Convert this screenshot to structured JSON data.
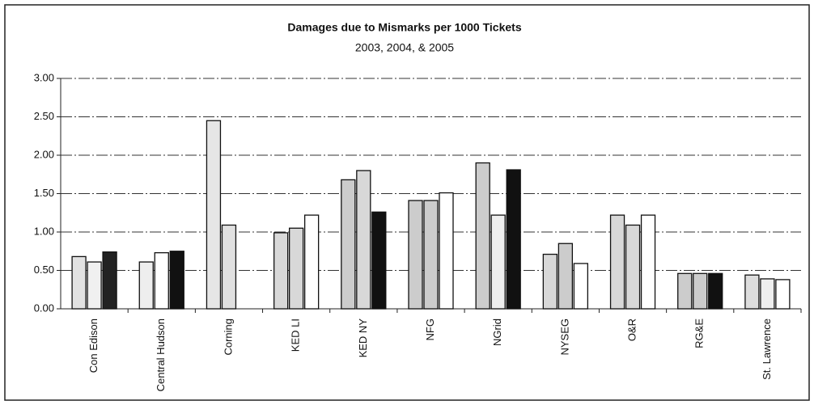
{
  "chart_data": {
    "type": "bar",
    "title": "Damages due to Mismarks per 1000 Tickets",
    "subtitle": "2003, 2004, & 2005",
    "categories": [
      "Con Edison",
      "Central Hudson",
      "Corning",
      "KED LI",
      "KED NY",
      "NFG",
      "NGrid",
      "NYSEG",
      "O&R",
      "RG&E",
      "St. Lawrence"
    ],
    "series": [
      {
        "values": [
          0.68,
          0.61,
          2.45,
          0.99,
          1.68,
          1.41,
          1.9,
          0.71,
          1.22,
          0.46,
          0.44
        ],
        "colors": [
          "#e2e2e2",
          "#eeeeee",
          "#e6e6e6",
          "#d8d8d8",
          "#cccccc",
          "#cccccc",
          "#cccccc",
          "#d8d8d8",
          "#d8d8d8",
          "#cccccc",
          "#dddddd"
        ]
      },
      {
        "values": [
          0.61,
          0.73,
          1.09,
          1.05,
          1.8,
          1.41,
          1.22,
          0.85,
          1.09,
          0.46,
          0.39
        ],
        "colors": [
          "#f0f0f0",
          "#ffffff",
          "#e0e0e0",
          "#d8d8d8",
          "#d8d8d8",
          "#cccccc",
          "#eeeeee",
          "#cccccc",
          "#d8d8d8",
          "#cccccc",
          "#eeeeee"
        ]
      },
      {
        "values": [
          0.74,
          0.75,
          null,
          1.22,
          1.26,
          1.51,
          1.81,
          0.59,
          1.22,
          0.46,
          0.38
        ],
        "colors": [
          "#222222",
          "#111111",
          "#ffffff",
          "#ffffff",
          "#111111",
          "#ffffff",
          "#111111",
          "#ffffff",
          "#ffffff",
          "#111111",
          "#ffffff"
        ]
      }
    ],
    "ylim": [
      0,
      3
    ],
    "yticks": [
      {
        "value": 0,
        "label": "0.00"
      },
      {
        "value": 0.5,
        "label": "0.50"
      },
      {
        "value": 1,
        "label": "1.00"
      },
      {
        "value": 1.5,
        "label": "1.50"
      },
      {
        "value": 2,
        "label": "2.00"
      },
      {
        "value": 2.5,
        "label": "2.50"
      },
      {
        "value": 3,
        "label": "3.00"
      }
    ],
    "grid": true
  }
}
